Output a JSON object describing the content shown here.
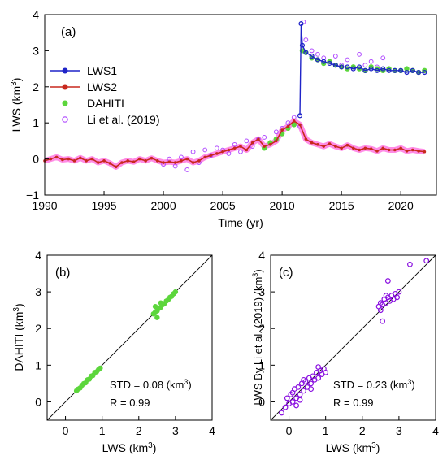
{
  "colors": {
    "lws1": "#1f24c8",
    "lws2": "#c8281e",
    "lws_band": "#ff6fe0",
    "dahiti": "#5cd63c",
    "li": "#b04bff",
    "li_dark": "#8a10e0",
    "axis": "#000000"
  },
  "chart_data": [
    {
      "id": "a",
      "type": "line",
      "panel_label": "(a)",
      "xlabel": "Time (yr)",
      "ylabel_main": "LWS (km",
      "ylabel_sup": "3",
      "ylabel_tail": ")",
      "xlim": [
        1990,
        2023
      ],
      "ylim": [
        -1,
        4
      ],
      "xticks": [
        1990,
        1995,
        2000,
        2005,
        2010,
        2015,
        2020
      ],
      "yticks": [
        -1,
        0,
        1,
        2,
        3,
        4
      ],
      "xtick_labels": [
        "1990",
        "1995",
        "2000",
        "2005",
        "2010",
        "2015",
        "2020"
      ],
      "ytick_labels": [
        "−1",
        "0",
        "1",
        "2",
        "3",
        "4"
      ],
      "legend": [
        {
          "name": "LWS1",
          "marker": "line-dot",
          "color_key": "lws1"
        },
        {
          "name": "LWS2",
          "marker": "line-dot",
          "color_key": "lws2"
        },
        {
          "name": "DAHITI",
          "marker": "dot",
          "color_key": "dahiti"
        },
        {
          "name": "Li et al. (2019)",
          "marker": "ring",
          "color_key": "li"
        }
      ],
      "series": [
        {
          "name": "LWS2",
          "x": [
            1990.0,
            1990.5,
            1991.0,
            1991.5,
            1992.0,
            1992.5,
            1993.0,
            1993.5,
            1994.0,
            1994.5,
            1995.0,
            1995.5,
            1996.0,
            1996.5,
            1997.0,
            1997.5,
            1998.0,
            1998.5,
            1999.0,
            1999.5,
            2000.0,
            2000.5,
            2001.0,
            2001.5,
            2002.0,
            2002.5,
            2003.0,
            2003.5,
            2004.0,
            2004.5,
            2005.0,
            2005.5,
            2006.0,
            2006.5,
            2007.0,
            2007.5,
            2008.0,
            2008.5,
            2009.0,
            2009.5,
            2010.0,
            2010.5,
            2011.0,
            2011.5,
            2012.0,
            2012.5,
            2013.0,
            2013.5,
            2014.0,
            2014.5,
            2015.0,
            2015.5,
            2016.0,
            2016.5,
            2017.0,
            2017.5,
            2018.0,
            2018.5,
            2019.0,
            2019.5,
            2020.0,
            2020.5,
            2021.0,
            2021.5,
            2022.0
          ],
          "y": [
            -0.05,
            0.0,
            0.05,
            -0.02,
            0.0,
            -0.05,
            0.03,
            -0.05,
            0.0,
            -0.1,
            -0.05,
            -0.12,
            -0.22,
            -0.1,
            -0.05,
            -0.08,
            0.0,
            -0.05,
            0.02,
            -0.05,
            -0.1,
            -0.08,
            -0.1,
            -0.05,
            0.0,
            -0.1,
            -0.05,
            0.05,
            0.1,
            0.15,
            0.2,
            0.25,
            0.3,
            0.35,
            0.25,
            0.45,
            0.55,
            0.35,
            0.4,
            0.5,
            0.8,
            0.9,
            1.05,
            0.95,
            0.55,
            0.45,
            0.4,
            0.35,
            0.42,
            0.35,
            0.3,
            0.38,
            0.3,
            0.25,
            0.3,
            0.28,
            0.22,
            0.3,
            0.25,
            0.25,
            0.3,
            0.22,
            0.25,
            0.22,
            0.2
          ]
        },
        {
          "name": "LWS1",
          "x": [
            2011.5,
            2011.6,
            2011.7,
            2012.0,
            2012.5,
            2013.0,
            2013.5,
            2014.0,
            2014.5,
            2015.0,
            2015.5,
            2016.0,
            2016.5,
            2017.0,
            2017.5,
            2018.0,
            2018.5,
            2019.0,
            2019.5,
            2020.0,
            2020.5,
            2021.0,
            2021.5,
            2022.0
          ],
          "y": [
            1.2,
            3.75,
            3.15,
            2.95,
            2.85,
            2.75,
            2.7,
            2.65,
            2.6,
            2.55,
            2.55,
            2.5,
            2.55,
            2.45,
            2.5,
            2.45,
            2.5,
            2.45,
            2.45,
            2.45,
            2.4,
            2.45,
            2.4,
            2.4
          ]
        },
        {
          "name": "DAHITI",
          "x": [
            2008.5,
            2009.0,
            2009.5,
            2010.0,
            2010.5,
            2011.0,
            2011.7,
            2012.0,
            2012.5,
            2013.0,
            2013.5,
            2014.0,
            2014.5,
            2015.0,
            2015.5,
            2016.0,
            2016.5,
            2017.0,
            2017.5,
            2018.0,
            2018.5,
            2019.0,
            2019.5,
            2020.0,
            2020.5,
            2021.0,
            2021.5,
            2022.0
          ],
          "y": [
            0.3,
            0.45,
            0.55,
            0.7,
            0.85,
            0.95,
            3.0,
            2.95,
            2.8,
            2.75,
            2.65,
            2.7,
            2.6,
            2.55,
            2.5,
            2.55,
            2.5,
            2.45,
            2.55,
            2.5,
            2.45,
            2.5,
            2.45,
            2.45,
            2.5,
            2.45,
            2.4,
            2.45
          ]
        },
        {
          "name": "Li et al. (2019)",
          "x": [
            2000.0,
            2000.5,
            2001.0,
            2001.5,
            2002.0,
            2002.5,
            2003.0,
            2003.5,
            2004.0,
            2004.5,
            2005.0,
            2005.5,
            2006.0,
            2006.5,
            2007.0,
            2007.5,
            2008.0,
            2008.5,
            2009.0,
            2009.5,
            2010.0,
            2010.5,
            2011.0,
            2011.5,
            2011.8,
            2012.0,
            2012.5,
            2013.0,
            2013.5,
            2014.0,
            2014.5,
            2015.0,
            2015.5,
            2016.0,
            2016.5,
            2017.0,
            2017.5,
            2018.0,
            2018.5,
            2019.0
          ],
          "y": [
            -0.15,
            0.0,
            -0.2,
            0.05,
            -0.3,
            0.2,
            -0.1,
            0.25,
            0.1,
            0.3,
            0.25,
            0.15,
            0.4,
            0.2,
            0.5,
            0.35,
            0.55,
            0.6,
            0.45,
            0.75,
            0.85,
            1.0,
            1.15,
            0.9,
            3.8,
            3.3,
            3.0,
            2.9,
            2.8,
            2.7,
            2.85,
            2.6,
            2.75,
            2.5,
            2.9,
            2.6,
            2.7,
            2.55,
            2.8,
            2.5
          ]
        }
      ]
    },
    {
      "id": "b",
      "type": "scatter",
      "panel_label": "(b)",
      "xlabel_main": "LWS (km",
      "xlabel_sup": "3",
      "xlabel_tail": ")",
      "ylabel_main": "DAHITI (km",
      "ylabel_sup": "3",
      "ylabel_tail": ")",
      "xlim": [
        -0.5,
        4
      ],
      "ylim": [
        -0.5,
        4
      ],
      "xticks": [
        0,
        1,
        2,
        3,
        4
      ],
      "yticks": [
        0,
        1,
        2,
        3,
        4
      ],
      "xtick_labels": [
        "0",
        "1",
        "2",
        "3",
        "4"
      ],
      "ytick_labels": [
        "0",
        "1",
        "2",
        "3",
        "4"
      ],
      "reference_line": "1:1",
      "std_label": "STD = 0.08 (km",
      "std_sup": "3",
      "std_tail": ")",
      "r_label": "R = 0.99",
      "series": [
        {
          "name": "DAHITI",
          "marker": "dot",
          "x": [
            0.3,
            0.35,
            0.4,
            0.45,
            0.5,
            0.55,
            0.6,
            0.65,
            0.7,
            0.75,
            0.8,
            0.85,
            0.9,
            0.95,
            2.4,
            2.45,
            2.5,
            2.55,
            2.6,
            2.65,
            2.7,
            2.75,
            2.8,
            2.85,
            2.9,
            2.95,
            3.0,
            2.5,
            2.6,
            2.45
          ],
          "y": [
            0.3,
            0.35,
            0.38,
            0.45,
            0.5,
            0.52,
            0.6,
            0.62,
            0.7,
            0.72,
            0.8,
            0.82,
            0.88,
            0.92,
            2.4,
            2.45,
            2.48,
            2.55,
            2.58,
            2.65,
            2.68,
            2.75,
            2.78,
            2.85,
            2.88,
            2.95,
            3.0,
            2.3,
            2.7,
            2.6
          ]
        }
      ]
    },
    {
      "id": "c",
      "type": "scatter",
      "panel_label": "(c)",
      "xlabel_main": "LWS (km",
      "xlabel_sup": "3",
      "xlabel_tail": ")",
      "ylabel_main": "LWS By Li et al. (2019) (km",
      "ylabel_sup": "3",
      "ylabel_tail": ")",
      "xlim": [
        -0.5,
        4
      ],
      "ylim": [
        -0.5,
        4
      ],
      "xticks": [
        0,
        1,
        2,
        3,
        4
      ],
      "yticks": [
        0,
        1,
        2,
        3,
        4
      ],
      "xtick_labels": [
        "0",
        "1",
        "2",
        "3",
        "4"
      ],
      "ytick_labels": [
        "0",
        "1",
        "2",
        "3",
        "4"
      ],
      "reference_line": "1:1",
      "std_label": "STD = 0.23 (km",
      "std_sup": "3",
      "std_tail": ")",
      "r_label": "R = 0.99",
      "series": [
        {
          "name": "Li et al. (2019)",
          "marker": "ring",
          "x": [
            -0.2,
            -0.1,
            -0.05,
            0.0,
            0.05,
            0.1,
            0.15,
            0.2,
            0.25,
            0.3,
            0.35,
            0.4,
            0.45,
            0.5,
            0.55,
            0.6,
            0.65,
            0.7,
            0.75,
            0.8,
            0.85,
            0.9,
            0.95,
            1.0,
            0.2,
            0.4,
            0.6,
            0.1,
            0.8,
            0.3,
            2.45,
            2.5,
            2.55,
            2.6,
            2.65,
            2.7,
            2.75,
            2.8,
            2.85,
            2.9,
            2.95,
            3.0,
            2.55,
            2.7,
            3.3,
            3.75,
            2.5,
            2.65
          ],
          "y": [
            -0.3,
            -0.15,
            0.1,
            -0.05,
            0.2,
            0.0,
            0.35,
            0.1,
            0.4,
            0.2,
            0.5,
            0.3,
            0.55,
            0.4,
            0.65,
            0.5,
            0.7,
            0.6,
            0.8,
            0.65,
            0.85,
            0.75,
            0.9,
            0.8,
            -0.1,
            0.6,
            0.35,
            0.25,
            0.95,
            0.05,
            2.6,
            2.7,
            2.65,
            2.8,
            2.7,
            2.85,
            2.75,
            2.9,
            2.8,
            2.95,
            2.85,
            3.0,
            2.2,
            3.3,
            3.75,
            3.85,
            2.5,
            2.9
          ]
        }
      ]
    }
  ]
}
